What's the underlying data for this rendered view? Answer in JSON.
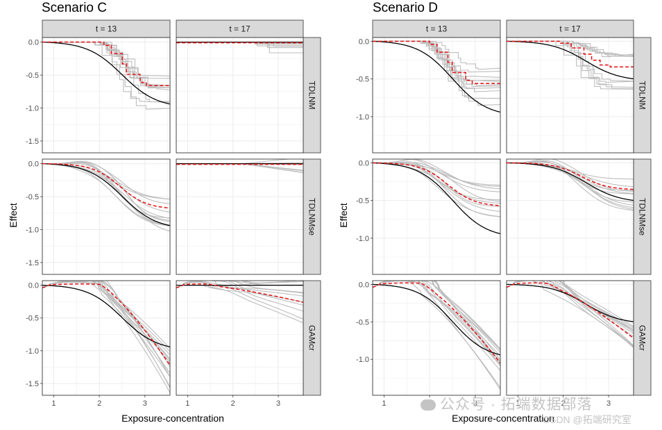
{
  "chart_data": [
    {
      "type": "line",
      "title": "Scenario C",
      "xlabel": "Exposure-concentration",
      "ylabel": "Effect",
      "facet_cols": [
        "t = 13",
        "t = 17"
      ],
      "facet_rows": [
        "TDLNM",
        "TDLNMse",
        "GAMcr"
      ],
      "xlim": [
        0.75,
        3.55
      ],
      "x_ticks": [
        1,
        2,
        3
      ],
      "x_tick_labels": [
        "1",
        "2",
        "3"
      ],
      "ylim": [
        -1.68,
        0.07
      ],
      "y_ticks": [
        0.0,
        -0.5,
        -1.0,
        -1.5
      ],
      "y_tick_labels": [
        "0.0",
        "-0.5",
        "-1.0",
        "-1.5"
      ],
      "legend": "none",
      "series_styles": {
        "true": {
          "color": "#000000",
          "dash": "solid",
          "label": "true"
        },
        "mean": {
          "color": "#e41a1c",
          "dash": "dashed",
          "label": "mean"
        },
        "samples": {
          "color": "#bdbdbd",
          "dash": "solid",
          "label": "samples"
        }
      },
      "panels": [
        {
          "row": "TDLNM",
          "col": "t = 13",
          "true": {
            "form": "sigmoid",
            "mid": 2.5,
            "width": 0.38,
            "floor": -1.0
          },
          "mean": {
            "form": "steps",
            "floor": -0.66,
            "center": 2.55
          },
          "samples": {
            "count": 10,
            "form": "steps",
            "floor_range": [
              -1.1,
              -0.5
            ],
            "center": 2.55
          }
        },
        {
          "row": "TDLNM",
          "col": "t = 17",
          "true": {
            "form": "flat",
            "level": 0.0
          },
          "mean": {
            "form": "flat",
            "level": -0.01
          },
          "samples": {
            "count": 8,
            "form": "flat_dip",
            "floor_range": [
              -0.3,
              0.0
            ],
            "center": 2.6
          }
        },
        {
          "row": "TDLNMse",
          "col": "t = 13",
          "true": {
            "form": "sigmoid",
            "mid": 2.5,
            "width": 0.38,
            "floor": -1.0
          },
          "mean": {
            "form": "sigmoid",
            "mid": 2.45,
            "width": 0.3,
            "floor": -0.69
          },
          "samples": {
            "count": 12,
            "form": "sigmoid",
            "floor_range": [
              -1.2,
              -0.55
            ],
            "mid": 2.45,
            "width": 0.3
          }
        },
        {
          "row": "TDLNMse",
          "col": "t = 17",
          "true": {
            "form": "flat",
            "level": 0.0
          },
          "mean": {
            "form": "flat",
            "level": -0.01
          },
          "samples": {
            "count": 8,
            "form": "flat_wobble",
            "floor_range": [
              -0.15,
              0.1
            ],
            "center": 2.8
          }
        },
        {
          "row": "GAMcr",
          "col": "t = 13",
          "true": {
            "form": "sigmoid",
            "mid": 2.5,
            "width": 0.38,
            "floor": -1.0
          },
          "mean": {
            "form": "smooth_decline",
            "start": 2.0,
            "end_value": -1.22
          },
          "samples": {
            "count": 14,
            "form": "smooth_decline",
            "floor_range": [
              -1.7,
              -0.9
            ],
            "start": 1.9
          }
        },
        {
          "row": "GAMcr",
          "col": "t = 17",
          "true": {
            "form": "flat",
            "level": 0.0
          },
          "mean": {
            "form": "smooth_decline",
            "start": 1.4,
            "end_value": -0.26
          },
          "samples": {
            "count": 12,
            "form": "smooth_decline",
            "floor_range": [
              -0.6,
              0.1
            ],
            "start": 1.3
          }
        }
      ]
    },
    {
      "type": "line",
      "title": "Scenario D",
      "xlabel": "Exposure-concentration",
      "ylabel": "Effect",
      "facet_cols": [
        "t = 13",
        "t = 17"
      ],
      "facet_rows": [
        "TDLNM",
        "TDLNMse",
        "GAMcr"
      ],
      "xlim": [
        0.75,
        3.55
      ],
      "x_ticks": [
        1,
        2,
        3
      ],
      "x_tick_labels": [
        "1",
        "2",
        "3"
      ],
      "ylim": [
        -1.48,
        0.05
      ],
      "y_ticks": [
        0.0,
        -0.5,
        -1.0
      ],
      "y_tick_labels": [
        "0.0",
        "-0.5",
        "-1.0"
      ],
      "legend": "none",
      "series_styles": {
        "true": {
          "color": "#000000",
          "dash": "solid",
          "label": "true"
        },
        "mean": {
          "color": "#e41a1c",
          "dash": "dashed",
          "label": "mean"
        },
        "samples": {
          "color": "#bdbdbd",
          "dash": "solid",
          "label": "samples"
        }
      },
      "panels": [
        {
          "row": "TDLNM",
          "col": "t = 13",
          "true": {
            "form": "sigmoid",
            "mid": 2.5,
            "width": 0.38,
            "floor": -1.0
          },
          "mean": {
            "form": "steps",
            "floor": -0.56,
            "center": 2.45
          },
          "samples": {
            "count": 11,
            "form": "steps",
            "floor_range": [
              -0.85,
              -0.25
            ],
            "center": 2.45
          }
        },
        {
          "row": "TDLNM",
          "col": "t = 17",
          "true": {
            "form": "sigmoid",
            "mid": 2.5,
            "width": 0.38,
            "floor": -0.53
          },
          "mean": {
            "form": "steps",
            "floor": -0.34,
            "center": 2.5
          },
          "samples": {
            "count": 10,
            "form": "steps",
            "floor_range": [
              -0.65,
              -0.15
            ],
            "center": 2.5
          }
        },
        {
          "row": "TDLNMse",
          "col": "t = 13",
          "true": {
            "form": "sigmoid",
            "mid": 2.5,
            "width": 0.38,
            "floor": -1.0
          },
          "mean": {
            "form": "sigmoid",
            "mid": 2.4,
            "width": 0.3,
            "floor": -0.58
          },
          "samples": {
            "count": 11,
            "form": "sigmoid",
            "floor_range": [
              -0.75,
              -0.3
            ],
            "mid": 2.4,
            "width": 0.3
          }
        },
        {
          "row": "TDLNMse",
          "col": "t = 17",
          "true": {
            "form": "sigmoid",
            "mid": 2.5,
            "width": 0.38,
            "floor": -0.53
          },
          "mean": {
            "form": "sigmoid",
            "mid": 2.4,
            "width": 0.3,
            "floor": -0.36
          },
          "samples": {
            "count": 11,
            "form": "sigmoid",
            "floor_range": [
              -0.65,
              -0.2
            ],
            "mid": 2.4,
            "width": 0.3
          }
        },
        {
          "row": "GAMcr",
          "col": "t = 13",
          "true": {
            "form": "sigmoid",
            "mid": 2.5,
            "width": 0.38,
            "floor": -1.0
          },
          "mean": {
            "form": "smooth_decline",
            "start": 1.8,
            "end_value": -1.05
          },
          "samples": {
            "count": 14,
            "form": "smooth_decline",
            "floor_range": [
              -1.42,
              -0.85
            ],
            "start": 1.7
          }
        },
        {
          "row": "GAMcr",
          "col": "t = 17",
          "true": {
            "form": "sigmoid",
            "mid": 2.5,
            "width": 0.38,
            "floor": -0.53
          },
          "mean": {
            "form": "smooth_decline",
            "start": 1.6,
            "end_value": -0.72
          },
          "samples": {
            "count": 13,
            "form": "smooth_decline",
            "floor_range": [
              -0.85,
              -0.55
            ],
            "start": 1.5
          }
        }
      ]
    }
  ],
  "watermark": {
    "main": "公众号 · 拓端数据部落",
    "sub": "CSDN @拓端研究室"
  }
}
